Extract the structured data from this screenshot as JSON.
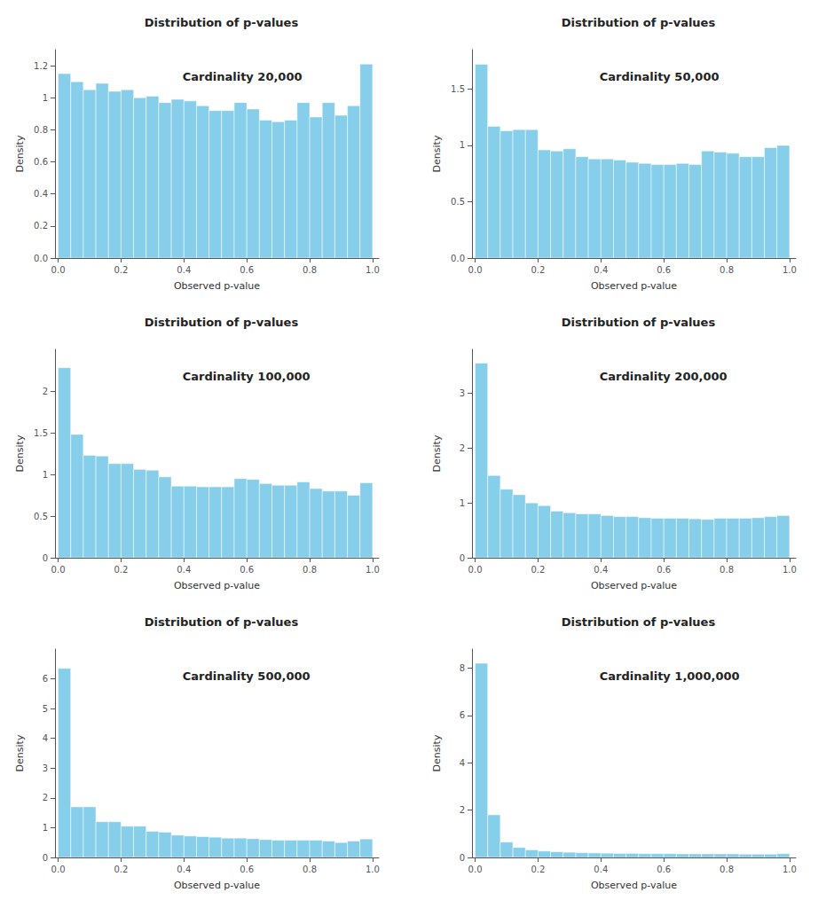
{
  "chart_data": [
    {
      "type": "histogram",
      "title": "Distribution of p-values",
      "annotation": "Cardinality 20,000",
      "xlabel": "Observed p-value",
      "ylabel": "Density",
      "bins": [
        0,
        0.04,
        0.08,
        0.12,
        0.16,
        0.2,
        0.24,
        0.28,
        0.32,
        0.36,
        0.4,
        0.44,
        0.48,
        0.52,
        0.56,
        0.6,
        0.64,
        0.68,
        0.72,
        0.76,
        0.8,
        0.84,
        0.88,
        0.92,
        0.96,
        1.0
      ],
      "values": [
        1.15,
        1.1,
        1.05,
        1.09,
        1.04,
        1.05,
        1.0,
        1.01,
        0.97,
        0.99,
        0.98,
        0.95,
        0.92,
        0.92,
        0.97,
        0.93,
        0.86,
        0.85,
        0.86,
        0.97,
        0.88,
        0.97,
        0.89,
        0.95,
        1.21
      ],
      "color": "#87CEEB",
      "xlim": [
        -0.01,
        1.02
      ],
      "xticks": [
        {
          "value": 0,
          "label": "0.0"
        },
        0.2,
        0.4,
        0.6,
        0.8,
        {
          "value": 1,
          "label": "1.0"
        }
      ],
      "ylim": [
        0,
        1.3
      ],
      "yticks": [
        {
          "value": 0,
          "label": "0.0"
        },
        0.2,
        0.4,
        0.6,
        0.8,
        1,
        1.2
      ],
      "grid": false
    },
    {
      "type": "histogram",
      "title": "Distribution of p-values",
      "annotation": "Cardinality 50,000",
      "xlabel": "Observed p-value",
      "ylabel": "Density",
      "bins": [
        0,
        0.04,
        0.08,
        0.12,
        0.16,
        0.2,
        0.24,
        0.28,
        0.32,
        0.36,
        0.4,
        0.44,
        0.48,
        0.52,
        0.56,
        0.6,
        0.64,
        0.68,
        0.72,
        0.76,
        0.8,
        0.84,
        0.88,
        0.92,
        0.96,
        1.0
      ],
      "values": [
        1.72,
        1.17,
        1.13,
        1.14,
        1.14,
        0.96,
        0.95,
        0.97,
        0.9,
        0.88,
        0.88,
        0.87,
        0.85,
        0.84,
        0.83,
        0.83,
        0.84,
        0.83,
        0.95,
        0.94,
        0.93,
        0.9,
        0.9,
        0.98,
        1.0
      ],
      "color": "#87CEEB",
      "xlim": [
        -0.01,
        1.02
      ],
      "xticks": [
        {
          "value": 0,
          "label": "0.0"
        },
        0.2,
        0.4,
        0.6,
        0.8,
        {
          "value": 1,
          "label": "1.0"
        }
      ],
      "ylim": [
        0,
        1.85
      ],
      "yticks": [
        {
          "value": 0,
          "label": "0.0"
        },
        0.5,
        1,
        1.5
      ],
      "grid": false
    },
    {
      "type": "histogram",
      "title": "Distribution of p-values",
      "annotation": "Cardinality 100,000",
      "xlabel": "Observed p-value",
      "ylabel": "Density",
      "bins": [
        0,
        0.04,
        0.08,
        0.12,
        0.16,
        0.2,
        0.24,
        0.28,
        0.32,
        0.36,
        0.4,
        0.44,
        0.48,
        0.52,
        0.56,
        0.6,
        0.64,
        0.68,
        0.72,
        0.76,
        0.8,
        0.84,
        0.88,
        0.92,
        0.96,
        1.0
      ],
      "values": [
        2.28,
        1.48,
        1.23,
        1.22,
        1.13,
        1.13,
        1.06,
        1.05,
        0.97,
        0.86,
        0.86,
        0.85,
        0.85,
        0.85,
        0.95,
        0.94,
        0.89,
        0.87,
        0.87,
        0.91,
        0.83,
        0.8,
        0.8,
        0.75,
        0.9
      ],
      "color": "#87CEEB",
      "xlim": [
        -0.01,
        1.02
      ],
      "xticks": [
        {
          "value": 0,
          "label": "0.0"
        },
        0.2,
        0.4,
        0.6,
        0.8,
        {
          "value": 1,
          "label": "1.0"
        }
      ],
      "ylim": [
        0,
        2.5
      ],
      "yticks": [
        0,
        0.5,
        1,
        1.5,
        2
      ],
      "grid": false
    },
    {
      "type": "histogram",
      "title": "Distribution of p-values",
      "annotation": "Cardinality 200,000",
      "xlabel": "Observed p-value",
      "ylabel": "Density",
      "bins": [
        0,
        0.04,
        0.08,
        0.12,
        0.16,
        0.2,
        0.24,
        0.28,
        0.32,
        0.36,
        0.4,
        0.44,
        0.48,
        0.52,
        0.56,
        0.6,
        0.64,
        0.68,
        0.72,
        0.76,
        0.8,
        0.84,
        0.88,
        0.92,
        0.96,
        1.0
      ],
      "values": [
        3.55,
        1.5,
        1.25,
        1.15,
        1.0,
        0.95,
        0.85,
        0.82,
        0.8,
        0.8,
        0.77,
        0.75,
        0.75,
        0.73,
        0.72,
        0.72,
        0.72,
        0.71,
        0.7,
        0.72,
        0.72,
        0.72,
        0.73,
        0.75,
        0.77
      ],
      "color": "#87CEEB",
      "xlim": [
        -0.01,
        1.02
      ],
      "xticks": [
        {
          "value": 0,
          "label": "0.0"
        },
        0.2,
        0.4,
        0.6,
        0.8,
        {
          "value": 1,
          "label": "1.0"
        }
      ],
      "ylim": [
        0,
        3.8
      ],
      "yticks": [
        0,
        1,
        2,
        3
      ],
      "grid": false
    },
    {
      "type": "histogram",
      "title": "Distribution of p-values",
      "annotation": "Cardinality 500,000",
      "xlabel": "Observed p-value",
      "ylabel": "Density",
      "bins": [
        0,
        0.04,
        0.08,
        0.12,
        0.16,
        0.2,
        0.24,
        0.28,
        0.32,
        0.36,
        0.4,
        0.44,
        0.48,
        0.52,
        0.56,
        0.6,
        0.64,
        0.68,
        0.72,
        0.76,
        0.8,
        0.84,
        0.88,
        0.92,
        0.96,
        1.0
      ],
      "values": [
        6.35,
        1.7,
        1.7,
        1.2,
        1.2,
        1.05,
        1.05,
        0.88,
        0.85,
        0.75,
        0.72,
        0.7,
        0.68,
        0.65,
        0.65,
        0.63,
        0.6,
        0.58,
        0.58,
        0.58,
        0.58,
        0.55,
        0.5,
        0.55,
        0.62
      ],
      "color": "#87CEEB",
      "xlim": [
        -0.01,
        1.02
      ],
      "xticks": [
        {
          "value": 0,
          "label": "0.0"
        },
        0.2,
        0.4,
        0.6,
        0.8,
        {
          "value": 1,
          "label": "1.0"
        }
      ],
      "ylim": [
        0,
        7.0
      ],
      "yticks": [
        0,
        1,
        2,
        3,
        4,
        5,
        6
      ],
      "grid": false
    },
    {
      "type": "histogram",
      "title": "Distribution of p-values",
      "annotation": "Cardinality 1,000,000",
      "xlabel": "Observed p-value",
      "ylabel": "Density",
      "bins": [
        0,
        0.04,
        0.08,
        0.12,
        0.16,
        0.2,
        0.24,
        0.28,
        0.32,
        0.36,
        0.4,
        0.44,
        0.48,
        0.52,
        0.56,
        0.6,
        0.64,
        0.68,
        0.72,
        0.76,
        0.8,
        0.84,
        0.88,
        0.92,
        0.96,
        1.0
      ],
      "values": [
        8.2,
        1.8,
        0.65,
        0.42,
        0.32,
        0.27,
        0.24,
        0.22,
        0.2,
        0.19,
        0.18,
        0.17,
        0.17,
        0.16,
        0.16,
        0.16,
        0.15,
        0.15,
        0.15,
        0.15,
        0.15,
        0.14,
        0.14,
        0.14,
        0.16
      ],
      "color": "#87CEEB",
      "xlim": [
        -0.01,
        1.02
      ],
      "xticks": [
        {
          "value": 0,
          "label": "0.0"
        },
        0.2,
        0.4,
        0.6,
        0.8,
        {
          "value": 1,
          "label": "1.0"
        }
      ],
      "ylim": [
        0,
        8.8
      ],
      "yticks": [
        0,
        2,
        4,
        6,
        8
      ],
      "grid": false
    }
  ]
}
